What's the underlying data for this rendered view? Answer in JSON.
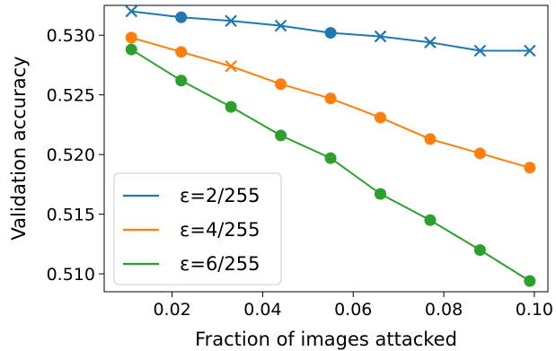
{
  "chart_data": {
    "type": "line",
    "xlabel": "Fraction of images attacked",
    "ylabel": "Validation accuracy",
    "xlim": [
      0.005,
      0.103
    ],
    "ylim": [
      0.5085,
      0.5325
    ],
    "xticks": [
      0.02,
      0.04,
      0.06,
      0.08,
      0.1
    ],
    "xtick_labels": [
      "0.02",
      "0.04",
      "0.06",
      "0.08",
      "0.10"
    ],
    "yticks": [
      0.51,
      0.515,
      0.52,
      0.525,
      0.53
    ],
    "ytick_labels": [
      "0.510",
      "0.515",
      "0.520",
      "0.525",
      "0.530"
    ],
    "grid": false,
    "legend_position": "lower-left",
    "x": [
      0.011,
      0.022,
      0.033,
      0.044,
      0.055,
      0.066,
      0.077,
      0.088,
      0.099
    ],
    "series": [
      {
        "name": "ε=2/255",
        "color": "#1f77b4",
        "values": [
          0.532,
          0.5315,
          0.5312,
          0.5308,
          0.5302,
          0.5299,
          0.5294,
          0.5287,
          0.5287
        ],
        "markers": [
          "x",
          "o",
          "x",
          "x",
          "o",
          "x",
          "x",
          "x",
          "x"
        ]
      },
      {
        "name": "ε=4/255",
        "color": "#ff7f0e",
        "values": [
          0.5298,
          0.5286,
          0.5274,
          0.5259,
          0.5247,
          0.5231,
          0.5213,
          0.5201,
          0.5189
        ],
        "markers": [
          "o",
          "o",
          "x",
          "o",
          "o",
          "o",
          "o",
          "o",
          "o"
        ]
      },
      {
        "name": "ε=6/255",
        "color": "#2ca02c",
        "values": [
          0.5288,
          0.5262,
          0.524,
          0.5216,
          0.5197,
          0.5167,
          0.5145,
          0.512,
          0.5094
        ],
        "markers": [
          "o",
          "o",
          "o",
          "o",
          "o",
          "o",
          "o",
          "o",
          "o"
        ]
      }
    ]
  }
}
